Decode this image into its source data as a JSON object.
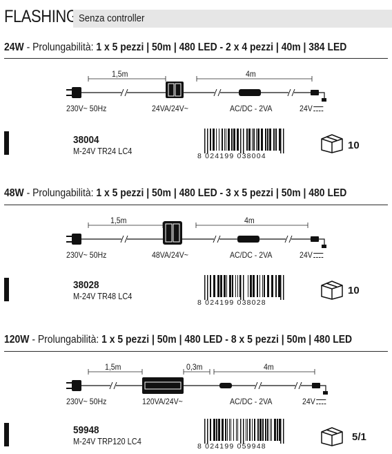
{
  "header": {
    "title": "FLASHING",
    "subtitle": "Senza controller"
  },
  "sections": [
    {
      "watt": "24W",
      "desc_prefix": " - Prolungabilità: ",
      "desc_bold": "1 x 5 pezzi | 50m | 480 LED - 2 x 4 pezzi | 40m | 384 LED",
      "len_left": "1,5m",
      "len_right": "4m",
      "len_mid": "",
      "lbl_input": "230V~ 50Hz",
      "lbl_transformer": "24VA/24V~",
      "lbl_converter": "AC/DC - 2VA",
      "lbl_output": "24V",
      "code": "38004",
      "model": "M-24V TR24 LC4",
      "barcode": {
        "first": "8",
        "group1": "024199",
        "group2": "038004"
      },
      "pack": "10",
      "icons": [
        "plug-icon",
        "transformer-icon",
        "converter-icon",
        "connector-icon",
        "box-icon"
      ]
    },
    {
      "watt": "48W",
      "desc_prefix": " - Prolungabilità: ",
      "desc_bold": "1 x 5 pezzi | 50m | 480 LED - 3 x 5 pezzi | 50m | 480 LED",
      "len_left": "1,5m",
      "len_right": "4m",
      "len_mid": "",
      "lbl_input": "230V~ 50Hz",
      "lbl_transformer": "48VA/24V~",
      "lbl_converter": "AC/DC - 2VA",
      "lbl_output": "24V",
      "code": "38028",
      "model": "M-24V TR48 LC4",
      "barcode": {
        "first": "8",
        "group1": "024199",
        "group2": "038028"
      },
      "pack": "10"
    },
    {
      "watt": "120W",
      "desc_prefix": " - Prolungabilità: ",
      "desc_bold": "1 x 5 pezzi | 50m | 480 LED - 8 x 5 pezzi | 50m | 480 LED",
      "len_left": "1,5m",
      "len_right": "4m",
      "len_mid": "0,3m",
      "lbl_input": "230V~ 50Hz",
      "lbl_transformer": "120VA/24V~",
      "lbl_converter": "AC/DC - 2VA",
      "lbl_output": "24V",
      "code": "59948",
      "model": "M-24V TRP120 LC4",
      "barcode": {
        "first": "8",
        "group1": "024199",
        "group2": "059948"
      },
      "pack": "5/1"
    }
  ]
}
